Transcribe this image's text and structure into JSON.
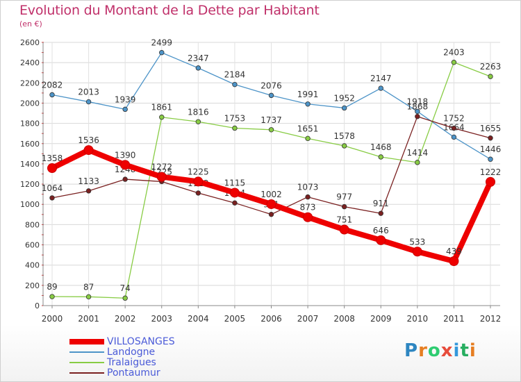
{
  "title": "Evolution du Montant de la Dette par Habitant",
  "subtitle": "(en €)",
  "logo": {
    "text": "Proxiti",
    "letter_colors": [
      "#2e86c1",
      "#e67e22",
      "#2ecc71",
      "#e74c3c",
      "#3498db",
      "#27ae60",
      "#e67e22"
    ]
  },
  "chart_data": {
    "type": "line",
    "title": "Evolution du Montant de la Dette par Habitant",
    "ylabel": "(en €)",
    "xlabel": "",
    "ylim": [
      0,
      2600
    ],
    "yticks": [
      0,
      200,
      400,
      600,
      800,
      1000,
      1200,
      1400,
      1600,
      1800,
      2000,
      2200,
      2400,
      2600
    ],
    "grid": true,
    "categories": [
      "2000",
      "2001",
      "2002",
      "2003",
      "2004",
      "2005",
      "2006",
      "2007",
      "2008",
      "2009",
      "2010",
      "2011",
      "2012"
    ],
    "series": [
      {
        "name": "VILLOSANGES",
        "color": "#ee0000",
        "values": [
          1358,
          1536,
          1390,
          1272,
          1225,
          1115,
          1002,
          873,
          751,
          646,
          533,
          439,
          1222
        ]
      },
      {
        "name": "Landogne",
        "color": "#4d94c8",
        "values": [
          2082,
          2013,
          1939,
          2499,
          2347,
          2184,
          2076,
          1991,
          1952,
          2147,
          1918,
          1664,
          1446
        ]
      },
      {
        "name": "Tralaigues",
        "color": "#88cc44",
        "values": [
          89,
          87,
          74,
          1861,
          1816,
          1753,
          1737,
          1651,
          1578,
          1468,
          1414,
          2403,
          2263
        ]
      },
      {
        "name": "Pontaumur",
        "color": "#7a2020",
        "values": [
          1064,
          1133,
          1248,
          1225,
          1112,
          1014,
          901,
          1073,
          977,
          911,
          1868,
          1752,
          1655
        ]
      }
    ]
  }
}
